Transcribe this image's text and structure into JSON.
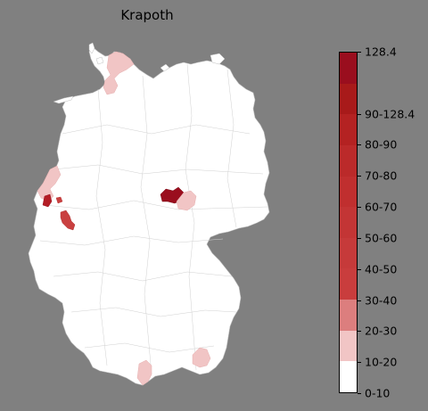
{
  "title": "Krapoth",
  "colorbar": {
    "labels": [
      "0-10",
      "10-20",
      "20-30",
      "30-40",
      "40-50",
      "50-60",
      "60-70",
      "70-80",
      "80-90",
      "90-128.4",
      "128.4"
    ],
    "segment_colors": [
      "#ffffff",
      "#f1c5c5",
      "#dc7e7e",
      "#c93d3d",
      "#c63a3a",
      "#c33535",
      "#c02f2f",
      "#bb2a2a",
      "#b42222",
      "#a81a1a",
      "#9a0e1e"
    ]
  },
  "colors": {
    "background": "#808080",
    "land": "#ffffff",
    "border": "#c8c8c8",
    "light_pink": "#f1c5c5",
    "dark_red": "#9a0e1e",
    "medium_red": "#c94040"
  },
  "highlighted_regions": [
    {
      "category": "10-20",
      "color": "#f1c5c5"
    },
    {
      "category": "90-128.4",
      "color": "#9a0e1e"
    },
    {
      "category": "40-50",
      "color": "#c94040"
    }
  ]
}
